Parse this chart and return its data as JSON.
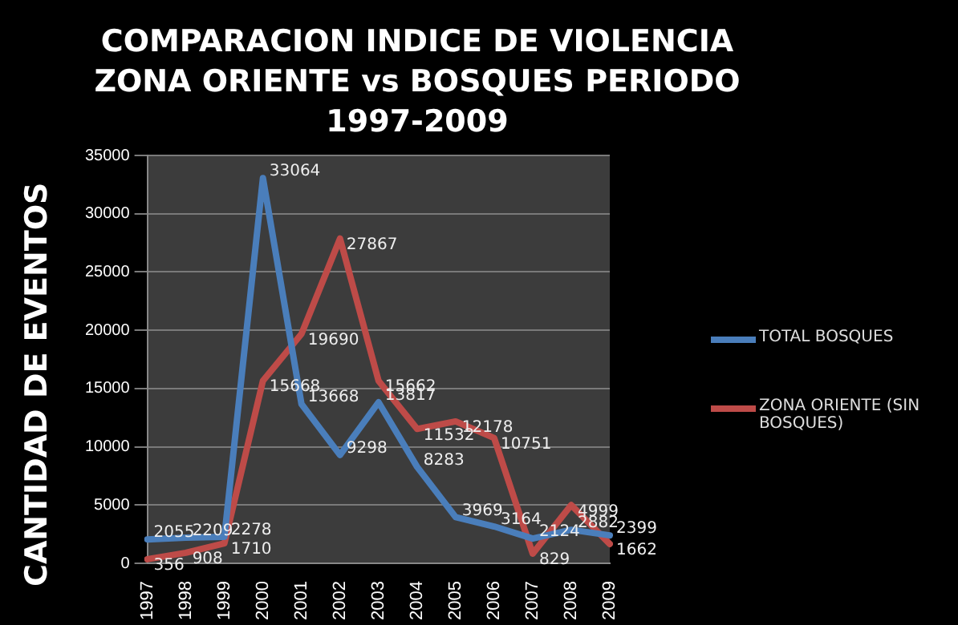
{
  "chart_data": {
    "type": "line",
    "title": "COMPARACION INDICE DE VIOLENCIA ZONA ORIENTE vs BOSQUES PERIODO 1997-2009",
    "ylabel": "CANTIDAD  DE  EVENTOS",
    "categories": [
      "1997",
      "1998",
      "1999",
      "2000",
      "2001",
      "2002",
      "2003",
      "2004",
      "2005",
      "2006",
      "2007",
      "2008",
      "2009"
    ],
    "series": [
      {
        "name": "TOTAL BOSQUES",
        "color": "#4a7ebb",
        "values": [
          2055,
          2209,
          2278,
          33064,
          13668,
          9298,
          13817,
          8283,
          3969,
          3164,
          2124,
          2882,
          2399
        ]
      },
      {
        "name": "ZONA ORIENTE (SIN BOSQUES)",
        "color": "#be4b48",
        "values": [
          356,
          908,
          1710,
          15668,
          19690,
          27867,
          15662,
          11532,
          12178,
          10751,
          829,
          4999,
          1662
        ]
      }
    ],
    "ylim": [
      0,
      35000
    ],
    "yticks": [
      0,
      5000,
      10000,
      15000,
      20000,
      25000,
      30000,
      35000
    ],
    "grid": "y",
    "legend": "right",
    "data_labels": true,
    "marker": "none",
    "line_style": "solid"
  }
}
